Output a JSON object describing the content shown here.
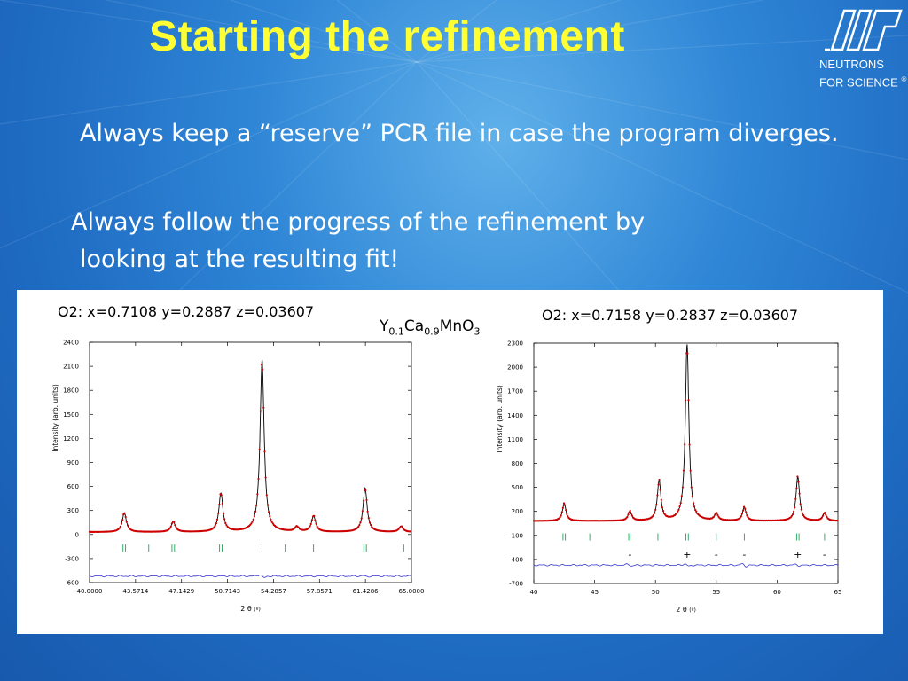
{
  "slide": {
    "title": "Starting the refinement",
    "logo_line1": "NEUTRONS",
    "logo_line2": "FOR SCIENCE",
    "logo_reg": "®",
    "bullet1": "Always keep a “reserve” PCR file in case the program diverges.",
    "bullet2_line1": "Always follow the progress of the refinement by",
    "bullet2_line2": "looking at the resulting fit!",
    "formula_y": "Y",
    "formula_y_sub": "0.1",
    "formula_ca": "Ca",
    "formula_ca_sub": "0.9",
    "formula_rest": "MnO",
    "formula_rest_sub": "3",
    "caption_left": "O2: x=0.7108 y=0.2887 z=0.03607",
    "caption_right": "O2: x=0.7158 y=0.2837 z=0.03607"
  },
  "chart_data": [
    {
      "type": "line",
      "xlabel": "2 θ",
      "xlabel_unit": "(º)",
      "ylabel": "Intensity (arb. units)",
      "xlim": [
        40,
        65
      ],
      "ylim": [
        -600,
        2400
      ],
      "x_ticks": [
        40.0,
        43.5714,
        47.1429,
        50.7143,
        54.2857,
        57.8571,
        61.4286,
        65.0
      ],
      "x_tick_labels": [
        "40.0000",
        "43.5714",
        "47.1429",
        "50.7143",
        "54.2857",
        "57.8571",
        "61.4286",
        "65.0000"
      ],
      "y_ticks": [
        -600,
        -300,
        0,
        300,
        600,
        900,
        1200,
        1500,
        1800,
        2100,
        2400
      ],
      "baseline": 30,
      "diff_offset": -520,
      "peaks": [
        {
          "x": 42.7,
          "height": 240,
          "width": 0.28
        },
        {
          "x": 46.5,
          "height": 130,
          "width": 0.28
        },
        {
          "x": 50.2,
          "height": 480,
          "width": 0.28
        },
        {
          "x": 53.4,
          "height": 2150,
          "width": 0.28
        },
        {
          "x": 56.1,
          "height": 60,
          "width": 0.28
        },
        {
          "x": 57.4,
          "height": 200,
          "width": 0.28
        },
        {
          "x": 61.4,
          "height": 550,
          "width": 0.28
        },
        {
          "x": 64.2,
          "height": 70,
          "width": 0.28
        }
      ],
      "reflections": [
        42.6,
        42.8,
        44.6,
        46.4,
        46.6,
        50.1,
        50.3,
        53.4,
        55.2,
        57.4,
        61.3,
        61.5,
        64.4
      ],
      "diff_features": [
        {
          "x": 53.4,
          "amp": 45
        },
        {
          "x": 50.2,
          "amp": -12
        },
        {
          "x": 61.4,
          "amp": 15
        }
      ],
      "series": [
        {
          "name": "observed",
          "color": "#cc0000"
        },
        {
          "name": "calculated",
          "color": "#000000"
        },
        {
          "name": "difference",
          "color": "#3333cc"
        },
        {
          "name": "Bragg positions",
          "color": "#009944"
        }
      ]
    },
    {
      "type": "line",
      "xlabel": "2 θ",
      "xlabel_unit": "(º)",
      "ylabel": "Intensity (arb. units)",
      "xlim": [
        40,
        65
      ],
      "ylim": [
        -700,
        2300
      ],
      "x_ticks": [
        40,
        45,
        50,
        55,
        60,
        65
      ],
      "x_tick_labels": [
        "40",
        "45",
        "50",
        "55",
        "60",
        "65"
      ],
      "y_ticks": [
        -700,
        -400,
        -100,
        200,
        500,
        800,
        1100,
        1400,
        1700,
        2000,
        2300
      ],
      "baseline": 80,
      "diff_offset": -470,
      "peaks": [
        {
          "x": 42.5,
          "height": 220,
          "width": 0.26
        },
        {
          "x": 47.9,
          "height": 120,
          "width": 0.26
        },
        {
          "x": 50.3,
          "height": 500,
          "width": 0.26
        },
        {
          "x": 52.6,
          "height": 2200,
          "width": 0.26
        },
        {
          "x": 55.0,
          "height": 90,
          "width": 0.26
        },
        {
          "x": 57.3,
          "height": 170,
          "width": 0.26
        },
        {
          "x": 61.7,
          "height": 550,
          "width": 0.26
        },
        {
          "x": 63.9,
          "height": 100,
          "width": 0.26
        }
      ],
      "reflections": [
        42.4,
        42.6,
        44.6,
        47.8,
        47.9,
        50.2,
        52.5,
        52.7,
        55.0,
        57.3,
        61.6,
        61.8,
        63.9
      ],
      "diff_features": [
        {
          "x": 47.9,
          "amp": 25
        },
        {
          "x": 52.6,
          "amp": 35
        },
        {
          "x": 57.3,
          "amp": 30
        },
        {
          "x": 61.7,
          "amp": 20
        }
      ],
      "annotations": [
        {
          "x": 47.9,
          "text": "-"
        },
        {
          "x": 52.6,
          "text": "+"
        },
        {
          "x": 55.0,
          "text": "-"
        },
        {
          "x": 57.3,
          "text": "-"
        },
        {
          "x": 61.7,
          "text": "+"
        },
        {
          "x": 63.9,
          "text": "-"
        }
      ],
      "series": [
        {
          "name": "observed",
          "color": "#cc0000"
        },
        {
          "name": "calculated",
          "color": "#000000"
        },
        {
          "name": "difference",
          "color": "#3333cc"
        },
        {
          "name": "Bragg positions",
          "color": "#009944"
        }
      ]
    }
  ]
}
